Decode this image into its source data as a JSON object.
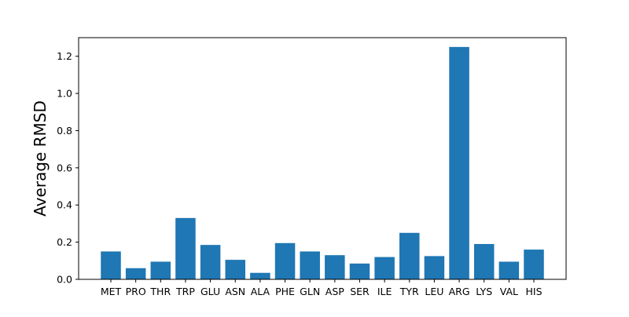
{
  "chart_data": {
    "type": "bar",
    "title": "",
    "xlabel": "",
    "ylabel": "Average RMSD",
    "ylim": [
      0,
      1.3
    ],
    "yticks": [
      "0.0",
      "0.2",
      "0.4",
      "0.6",
      "0.8",
      "1.0",
      "1.2"
    ],
    "ytick_values": [
      0.0,
      0.2,
      0.4,
      0.6,
      0.8,
      1.0,
      1.2
    ],
    "grid": false,
    "legend": "none",
    "bar_color": "#1f77b4",
    "categories": [
      "MET",
      "PRO",
      "THR",
      "TRP",
      "GLU",
      "ASN",
      "ALA",
      "PHE",
      "GLN",
      "ASP",
      "SER",
      "ILE",
      "TYR",
      "LEU",
      "ARG",
      "LYS",
      "VAL",
      "HIS"
    ],
    "values": [
      0.15,
      0.06,
      0.095,
      0.33,
      0.185,
      0.105,
      0.035,
      0.195,
      0.15,
      0.13,
      0.085,
      0.12,
      0.25,
      0.125,
      1.25,
      0.19,
      0.095,
      0.16
    ]
  }
}
